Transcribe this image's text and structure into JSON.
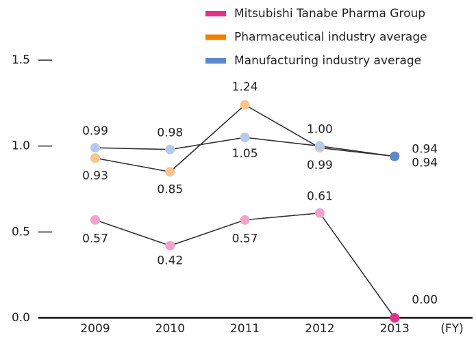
{
  "chart_data": {
    "type": "line",
    "categories": [
      "2009",
      "2010",
      "2011",
      "2012",
      "2013"
    ],
    "x_label": "(FY)",
    "series": [
      {
        "name": "Mitsubishi Tanabe Pharma Group",
        "color": "#e4308a",
        "values": [
          0.57,
          0.42,
          0.57,
          0.61,
          0
        ],
        "value_labels": [
          "0.57",
          "0.42",
          "0.57",
          "0.61",
          "0.00"
        ]
      },
      {
        "name": "Pharmaceutical industry average",
        "color": "#f08000",
        "values": [
          0.93,
          0.85,
          1.24,
          0.99,
          0.94
        ],
        "value_labels": [
          "0.93",
          "0.85",
          "1.24",
          "0.99",
          "0.94"
        ]
      },
      {
        "name": "Manufacturing industry average",
        "color": "#5b8ad0",
        "values": [
          0.99,
          0.98,
          1.05,
          1,
          0.94
        ],
        "value_labels": [
          "0.99",
          "0.98",
          "1.05",
          "1.00",
          "0.94"
        ]
      }
    ],
    "ylim": [
      0,
      1.5
    ],
    "yticks": [
      {
        "value": 0,
        "label": "0.0"
      },
      0.5,
      {
        "value": 1,
        "label": "1.0"
      },
      1.5
    ]
  }
}
